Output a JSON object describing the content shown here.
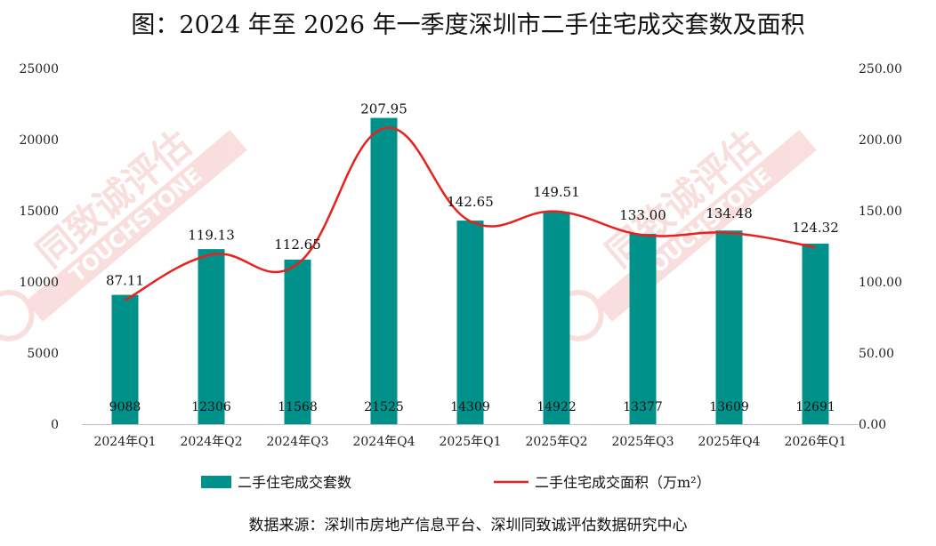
{
  "chart_data": {
    "type": "bar",
    "title": "图：2024 年至 2026 年一季度深圳市二手住宅成交套数及面积",
    "categories": [
      "2024年Q1",
      "2024年Q2",
      "2024年Q3",
      "2024年Q4",
      "2025年Q1",
      "2025年Q2",
      "2025年Q3",
      "2025年Q4",
      "2026年Q1"
    ],
    "series": [
      {
        "name": "二手住宅成交套数",
        "kind": "bar",
        "axis": "left",
        "color": "#00918A",
        "values": [
          9088,
          12306,
          11568,
          21525,
          14309,
          14922,
          13377,
          13609,
          12691
        ],
        "labels": [
          "9088",
          "12306",
          "11568",
          "21525",
          "14309",
          "14922",
          "13377",
          "13609",
          "12691"
        ]
      },
      {
        "name": "二手住宅成交面积（万m²）",
        "kind": "line",
        "axis": "right",
        "color": "#E8211E",
        "smooth": true,
        "values": [
          87.11,
          119.13,
          112.65,
          207.95,
          142.65,
          149.51,
          133.0,
          134.48,
          124.32
        ],
        "labels": [
          "87.11",
          "119.13",
          "112.65",
          "207.95",
          "142.65",
          "149.51",
          "133.00",
          "134.48",
          "124.32"
        ]
      }
    ],
    "y_left": {
      "ylim": [
        0,
        25000
      ],
      "ticks": [
        0,
        5000,
        10000,
        15000,
        20000,
        25000
      ],
      "tick_labels": [
        "0",
        "5000",
        "10000",
        "15000",
        "20000",
        "25000"
      ]
    },
    "y_right": {
      "ylim": [
        0,
        250
      ],
      "ticks": [
        0,
        50,
        100,
        150,
        200,
        250
      ],
      "tick_labels": [
        "0.00",
        "50.00",
        "100.00",
        "150.00",
        "200.00",
        "250.00"
      ]
    },
    "grid": false,
    "legend": "bottom",
    "source_note": "数据来源：深圳市房地产信息平台、深圳同致诚评估数据研究中心"
  },
  "watermark": {
    "cn": "同致诚评估",
    "en": "TOUCHSTONE",
    "color": "#F4C6C2"
  }
}
